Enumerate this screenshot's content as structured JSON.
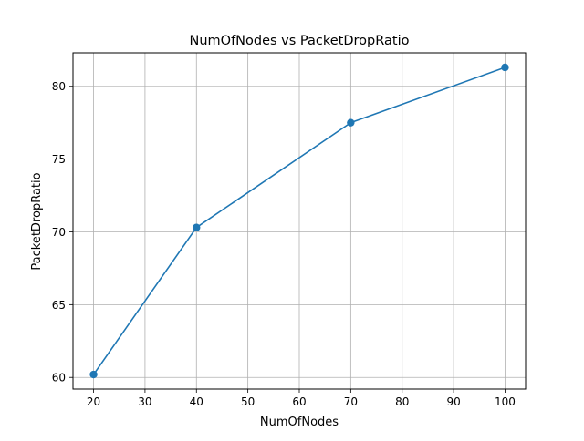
{
  "chart_data": {
    "type": "line",
    "title": "NumOfNodes vs PacketDropRatio",
    "xlabel": "NumOfNodes",
    "ylabel": "PacketDropRatio",
    "x": [
      20,
      40,
      70,
      100
    ],
    "series": [
      {
        "values": [
          60.2,
          70.3,
          77.5,
          81.3
        ]
      }
    ],
    "xticks": [
      20,
      30,
      40,
      50,
      60,
      70,
      80,
      90,
      100
    ],
    "yticks": [
      60,
      65,
      70,
      75,
      80
    ],
    "xlim": [
      16,
      104
    ],
    "ylim": [
      59.2,
      82.3
    ],
    "grid": true,
    "line_color": "#1f77b4",
    "marker": "circle"
  }
}
